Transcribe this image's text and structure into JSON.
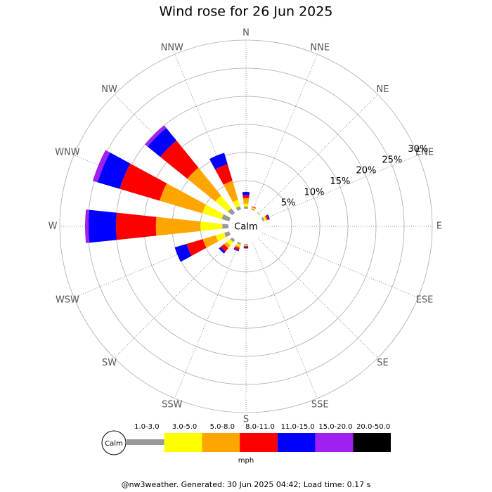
{
  "chart_data": {
    "type": "windrose",
    "title": "Wind rose for 26 Jun 2025",
    "categories": [
      "N",
      "NNE",
      "NE",
      "ENE",
      "E",
      "ESE",
      "SE",
      "SSE",
      "S",
      "SSW",
      "SW",
      "WSW",
      "W",
      "WNW",
      "NW",
      "NNW"
    ],
    "calm_label": "Calm",
    "unit": "mph",
    "rlim": [
      0,
      30
    ],
    "rticks": [
      {
        "value": 5,
        "label": "5%"
      },
      {
        "value": 10,
        "label": "10%"
      },
      {
        "value": 15,
        "label": "15%"
      },
      {
        "value": 20,
        "label": "20%"
      },
      {
        "value": 25,
        "label": "25%"
      },
      {
        "value": 30,
        "label": "30%"
      }
    ],
    "series": [
      {
        "name": "1.0-3.0",
        "color": "#999999",
        "values": [
          0.4,
          0.2,
          0.1,
          0.3,
          0,
          0,
          0,
          0,
          0.2,
          0.3,
          0.5,
          0.9,
          1.1,
          1.4,
          1.0,
          0.6
        ]
      },
      {
        "name": "3.0-5.0",
        "color": "#ffff00",
        "values": [
          0.5,
          0.2,
          0.1,
          0.3,
          0,
          0,
          0,
          0,
          0.1,
          0.3,
          0.8,
          1.6,
          3.9,
          3.6,
          2.9,
          1.2
        ]
      },
      {
        "name": "5.0-8.0",
        "color": "#ffa500",
        "values": [
          1.0,
          0.1,
          0,
          0.2,
          0,
          0,
          0,
          0,
          0.1,
          0.3,
          0.6,
          2.4,
          7.9,
          7.9,
          6.4,
          3.5
        ]
      },
      {
        "name": "8.0-11.0",
        "color": "#ff0000",
        "values": [
          0.5,
          0.1,
          0,
          0.3,
          0,
          0,
          0,
          0,
          0.2,
          0.4,
          0.8,
          3.0,
          7.1,
          7.4,
          6.2,
          3.1
        ]
      },
      {
        "name": "11.0-15.0",
        "color": "#0000ff",
        "values": [
          0.6,
          0,
          0,
          0.2,
          0,
          0,
          0,
          0,
          0.2,
          0.2,
          0.4,
          2.2,
          4.9,
          4.1,
          2.9,
          2.1
        ]
      },
      {
        "name": "15.0-20.0",
        "color": "#a020f0",
        "values": [
          0,
          0,
          0,
          0,
          0,
          0,
          0,
          0,
          0,
          0,
          0,
          0,
          0.6,
          0.9,
          0.6,
          0
        ]
      },
      {
        "name": "20.0-50.0",
        "color": "#000000",
        "values": [
          0,
          0,
          0,
          0,
          0,
          0,
          0,
          0,
          0,
          0,
          0,
          0,
          0,
          0,
          0,
          0
        ]
      }
    ],
    "footer": "@nw3weather. Generated: 30 Jun 2025 04:42; Load time: 0.17 s"
  }
}
